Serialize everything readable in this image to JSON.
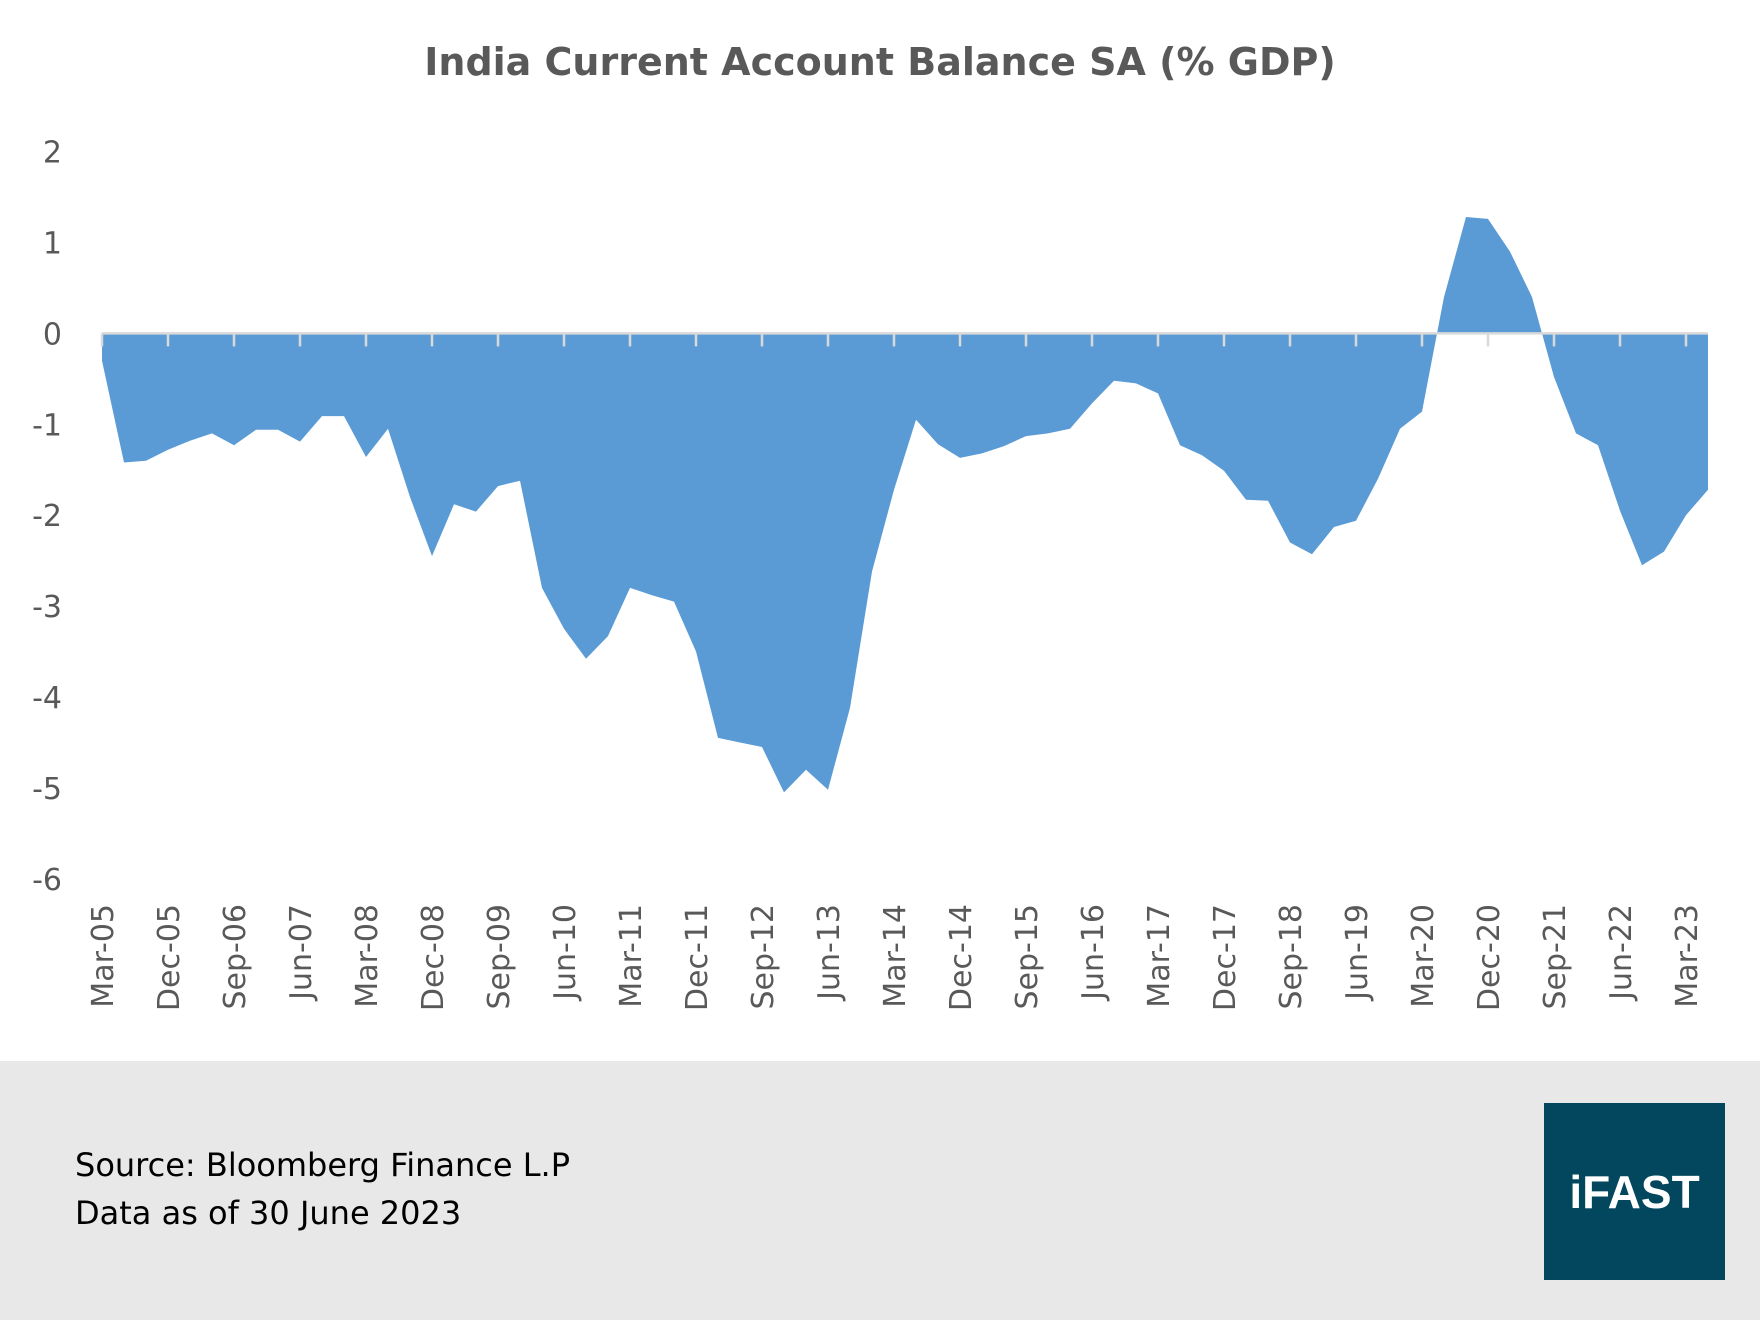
{
  "chart_data": {
    "type": "area",
    "title": "India Current Account Balance SA (% GDP)",
    "xlabel": "",
    "ylabel": "",
    "ylim": [
      -6,
      2
    ],
    "yticks": [
      2,
      1,
      0,
      -1,
      -2,
      -3,
      -4,
      -5,
      -6
    ],
    "grid": false,
    "color": "#5b9bd5",
    "x_tick_labels": [
      "Mar-05",
      "Dec-05",
      "Sep-06",
      "Jun-07",
      "Mar-08",
      "Dec-08",
      "Sep-09",
      "Jun-10",
      "Mar-11",
      "Dec-11",
      "Sep-12",
      "Jun-13",
      "Mar-14",
      "Dec-14",
      "Sep-15",
      "Jun-16",
      "Mar-17",
      "Dec-17",
      "Sep-18",
      "Jun-19",
      "Mar-20",
      "Dec-20",
      "Sep-21",
      "Jun-22",
      "Mar-23"
    ],
    "x_start": "Mar-05",
    "x_end": "Jun-23",
    "frequency": "quarterly",
    "values": [
      -0.3,
      -1.42,
      -1.4,
      -1.28,
      -1.18,
      -1.1,
      -1.23,
      -1.06,
      -1.06,
      -1.19,
      -0.91,
      -0.91,
      -1.36,
      -1.05,
      -1.8,
      -2.45,
      -1.88,
      -1.96,
      -1.68,
      -1.62,
      -2.8,
      -3.25,
      -3.58,
      -3.33,
      -2.8,
      -2.88,
      -2.95,
      -3.5,
      -4.45,
      -4.5,
      -4.55,
      -5.05,
      -4.8,
      -5.02,
      -4.12,
      -2.62,
      -1.72,
      -0.95,
      -1.22,
      -1.37,
      -1.32,
      -1.24,
      -1.13,
      -1.1,
      -1.05,
      -0.77,
      -0.52,
      -0.55,
      -0.66,
      -1.23,
      -1.34,
      -1.51,
      -1.83,
      -1.84,
      -2.3,
      -2.43,
      -2.13,
      -2.06,
      -1.6,
      -1.05,
      -0.86,
      0.4,
      1.28,
      1.26,
      0.9,
      0.4,
      -0.48,
      -1.1,
      -1.23,
      -1.95,
      -2.55,
      -2.4,
      -2.0,
      -1.72
    ]
  },
  "footer": {
    "source": "Source: Bloomberg Finance L.P",
    "data_as_of": "Data as of 30 June 2023",
    "logo_text": "iFAST",
    "logo_color": "#02475e"
  }
}
